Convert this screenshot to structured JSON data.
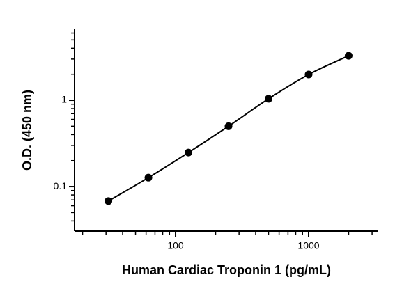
{
  "chart_data": {
    "type": "scatter",
    "x_label": "Human Cardiac Troponin 1 (pg/mL)",
    "y_label": "O.D. (450 nm)",
    "x": [
      31.25,
      62.5,
      125,
      250,
      500,
      1000,
      2000
    ],
    "series": [
      {
        "color": "#000000",
        "values": [
          0.068,
          0.127,
          0.248,
          0.5,
          1.04,
          1.99,
          3.28
        ]
      }
    ],
    "x_log": true,
    "y_log": true,
    "xlim": [
      17.4,
      3340
    ],
    "ylim": [
      0.0305,
      6.65
    ],
    "xticks": [
      100,
      1000
    ],
    "yticks": [
      0.1,
      1
    ],
    "x_minor_ticks": [
      20,
      30,
      40,
      50,
      60,
      70,
      80,
      90,
      200,
      300,
      400,
      500,
      600,
      700,
      800,
      900,
      2000,
      3000
    ],
    "y_minor_ticks": [
      0.04,
      0.05,
      0.06,
      0.07,
      0.08,
      0.09,
      0.2,
      0.3,
      0.4,
      0.5,
      0.6,
      0.7,
      0.8,
      0.9,
      2,
      3,
      4,
      5,
      6
    ],
    "fit_line": true
  }
}
